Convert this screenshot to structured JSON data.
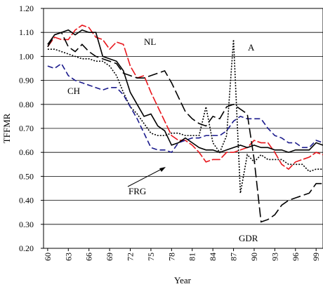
{
  "chart_data": {
    "type": "line",
    "y_label": "TFFMR",
    "x_label": "Year",
    "x": [
      60,
      61,
      62,
      63,
      64,
      65,
      66,
      67,
      68,
      69,
      70,
      71,
      72,
      73,
      74,
      75,
      76,
      77,
      78,
      79,
      80,
      81,
      82,
      83,
      84,
      85,
      86,
      87,
      88,
      89,
      90,
      91,
      92,
      93,
      94,
      95,
      96,
      97,
      98,
      99,
      100
    ],
    "xlim": [
      59.4,
      100
    ],
    "xticks": [
      60,
      63,
      66,
      69,
      72,
      75,
      78,
      81,
      84,
      87,
      90,
      93,
      96,
      99
    ],
    "ylim": [
      0.2,
      1.2
    ],
    "yticks": [
      {
        "value": 0.2,
        "label": "0.20"
      },
      {
        "value": 0.3,
        "label": "0.30"
      },
      {
        "value": 0.4,
        "label": "0.40"
      },
      {
        "value": 0.5,
        "label": "0.50"
      },
      {
        "value": 0.6,
        "label": "0.60"
      },
      {
        "value": 0.7,
        "label": "0.70"
      },
      {
        "value": 0.8,
        "label": "0.80"
      },
      {
        "value": 0.9,
        "label": "0.90"
      },
      {
        "value": 1.0,
        "label": "1.00"
      },
      {
        "value": 1.1,
        "label": "1.10"
      },
      {
        "value": 1.2,
        "label": "1.20"
      }
    ],
    "grid": true,
    "series": [
      {
        "name": "NL",
        "color": "#e8151b",
        "style": "dash-dot",
        "values": [
          1.04,
          1.08,
          1.07,
          1.07,
          1.11,
          1.13,
          1.12,
          1.08,
          1.07,
          1.03,
          1.06,
          1.05,
          0.96,
          0.91,
          0.92,
          0.85,
          0.79,
          0.73,
          0.67,
          0.65,
          0.65,
          0.63,
          0.6,
          0.56,
          0.57,
          0.57,
          0.6,
          0.6,
          0.61,
          0.62,
          0.65,
          0.64,
          0.64,
          0.6,
          0.55,
          0.53,
          0.56,
          0.57,
          0.58,
          0.6,
          0.59
        ]
      },
      {
        "name": "A",
        "color": "#000000",
        "style": "dotted",
        "values": [
          1.03,
          1.03,
          1.02,
          1.01,
          1.0,
          0.99,
          0.99,
          0.98,
          0.98,
          0.96,
          0.92,
          0.85,
          0.79,
          0.76,
          0.72,
          0.68,
          0.67,
          0.67,
          0.68,
          0.68,
          0.67,
          0.67,
          0.67,
          0.79,
          0.64,
          0.6,
          0.67,
          1.07,
          0.43,
          0.59,
          0.56,
          0.59,
          0.57,
          0.57,
          0.57,
          0.55,
          0.55,
          0.55,
          0.52,
          0.53,
          0.53
        ]
      },
      {
        "name": "CH",
        "color": "#1a1a8c",
        "style": "dashed",
        "values": [
          0.96,
          0.95,
          0.97,
          0.92,
          0.9,
          0.89,
          0.88,
          0.87,
          0.86,
          0.87,
          0.87,
          0.84,
          0.79,
          0.74,
          0.68,
          0.62,
          0.61,
          0.61,
          0.6,
          0.64,
          0.65,
          0.66,
          0.66,
          0.67,
          0.67,
          0.67,
          0.69,
          0.73,
          0.75,
          0.74,
          0.74,
          0.74,
          0.7,
          0.67,
          0.66,
          0.64,
          0.64,
          0.62,
          0.62,
          0.65,
          0.64
        ]
      },
      {
        "name": "FRG",
        "color": "#000000",
        "style": "solid",
        "values": [
          1.05,
          1.09,
          1.1,
          1.11,
          1.09,
          1.11,
          1.1,
          1.1,
          1.0,
          0.99,
          0.98,
          0.94,
          0.85,
          0.8,
          0.75,
          0.76,
          0.71,
          0.69,
          0.63,
          0.64,
          0.66,
          0.64,
          0.62,
          0.61,
          0.61,
          0.6,
          0.61,
          0.62,
          0.63,
          0.62,
          0.63,
          0.62,
          0.62,
          0.61,
          0.61,
          0.6,
          0.61,
          0.61,
          0.61,
          0.64,
          0.63
        ]
      },
      {
        "name": "GDR",
        "color": "#000000",
        "style": "long-dash",
        "values": [
          1.04,
          1.09,
          1.1,
          1.04,
          1.02,
          1.05,
          1.02,
          1.0,
          0.99,
          0.98,
          0.97,
          0.93,
          0.92,
          0.91,
          0.91,
          0.92,
          0.93,
          0.94,
          0.89,
          0.83,
          0.77,
          0.74,
          0.72,
          0.71,
          0.75,
          0.74,
          0.79,
          0.8,
          0.78,
          0.76,
          0.57,
          0.31,
          0.32,
          0.34,
          0.38,
          0.4,
          0.41,
          0.42,
          0.43,
          0.47,
          0.47
        ]
      }
    ]
  }
}
